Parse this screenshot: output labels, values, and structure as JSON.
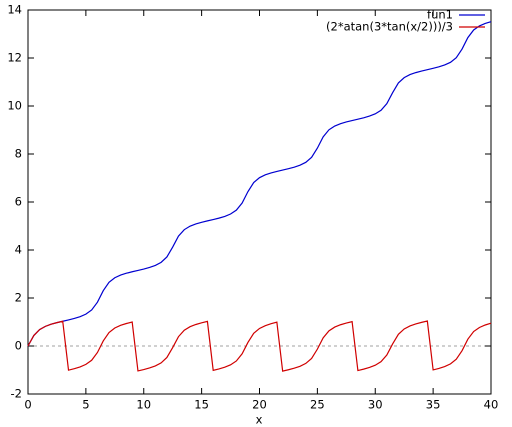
{
  "chart_data": {
    "type": "line",
    "xlabel": "x",
    "x": [
      0,
      0.5,
      1,
      1.5,
      2,
      2.5,
      3,
      3.5,
      4,
      4.5,
      5,
      5.5,
      6,
      6.5,
      7,
      7.5,
      8,
      8.5,
      9,
      9.5,
      10,
      10.5,
      11,
      11.5,
      12,
      12.5,
      13,
      13.5,
      14,
      14.5,
      15,
      15.5,
      16,
      16.5,
      17,
      17.5,
      18,
      18.5,
      19,
      19.5,
      20,
      20.5,
      21,
      21.5,
      22,
      22.5,
      23,
      23.5,
      24,
      24.5,
      25,
      25.5,
      26,
      26.5,
      27,
      27.5,
      28,
      28.5,
      29,
      29.5,
      30,
      30.5,
      31,
      31.5,
      32,
      32.5,
      33,
      33.5,
      34,
      34.5,
      35,
      35.5,
      36,
      36.5,
      37,
      37.5,
      38,
      38.5,
      39,
      39.5,
      40
    ],
    "series": [
      {
        "name": "fun1",
        "color": "#0000d0",
        "values": [
          0,
          0.436,
          0.682,
          0.818,
          0.907,
          0.974,
          1.031,
          1.087,
          1.148,
          1.223,
          1.327,
          1.5,
          1.825,
          2.305,
          2.657,
          2.845,
          2.954,
          3.032,
          3.094,
          3.15,
          3.207,
          3.272,
          3.358,
          3.485,
          3.71,
          4.123,
          4.578,
          4.847,
          4.993,
          5.085,
          5.154,
          5.213,
          5.269,
          5.328,
          5.4,
          5.5,
          5.66,
          5.958,
          6.431,
          6.811,
          7.014,
          7.131,
          7.212,
          7.275,
          7.331,
          7.388,
          7.452,
          7.533,
          7.652,
          7.86,
          8.246,
          8.716,
          9.009,
          9.165,
          9.263,
          9.335,
          9.394,
          9.45,
          9.509,
          9.579,
          9.672,
          9.821,
          10.096,
          10.556,
          10.961,
          11.182,
          11.308,
          11.391,
          11.456,
          11.513,
          11.569,
          11.631,
          11.709,
          11.821,
          12.013,
          12.372,
          12.85,
          13.168,
          13.338,
          13.441,
          13.515
        ]
      },
      {
        "name": "(2*atan(3*tan(x/2)))/3",
        "color": "#d00000",
        "values": [
          0,
          0.436,
          0.682,
          0.818,
          0.907,
          0.974,
          1.031,
          -1.007,
          -0.946,
          -0.872,
          -0.767,
          -0.594,
          -0.269,
          0.21,
          0.562,
          0.75,
          0.86,
          0.937,
          0.999,
          -1.039,
          -0.982,
          -0.916,
          -0.831,
          -0.704,
          -0.478,
          -0.066,
          0.389,
          0.658,
          0.804,
          0.896,
          0.965,
          1.024,
          -1.015,
          -0.955,
          -0.884,
          -0.784,
          -0.624,
          -0.325,
          0.148,
          0.528,
          0.731,
          0.848,
          0.928,
          0.992,
          -1.047,
          -0.99,
          -0.926,
          -0.845,
          -0.726,
          -0.518,
          -0.131,
          0.339,
          0.631,
          0.788,
          0.886,
          0.957,
          1.016,
          -1.022,
          -0.963,
          -0.893,
          -0.8,
          -0.651,
          -0.376,
          0.084,
          0.489,
          0.71,
          0.836,
          0.919,
          0.984,
          1.041,
          -0.997,
          -0.935,
          -0.857,
          -0.745,
          -0.553,
          -0.194,
          0.284,
          0.602,
          0.772,
          0.875,
          0.949
        ]
      }
    ],
    "xlim": [
      0,
      40
    ],
    "xticks": [
      0,
      5,
      10,
      15,
      20,
      25,
      30,
      35,
      40
    ],
    "ylim": [
      -2,
      14
    ],
    "yticks": [
      -2,
      0,
      2,
      4,
      6,
      8,
      10,
      12,
      14
    ],
    "zero_axis": true,
    "legend": "top-right"
  }
}
